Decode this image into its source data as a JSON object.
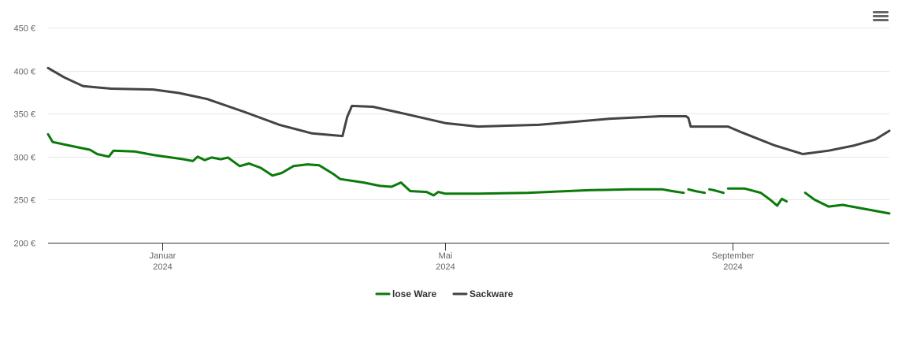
{
  "menu": {
    "icon": "hamburger-menu-icon"
  },
  "chart_data": {
    "type": "line",
    "title": "",
    "xlabel": "",
    "ylabel": "",
    "ylim": [
      200,
      450
    ],
    "y_ticks": [
      200,
      250,
      300,
      350,
      400,
      450
    ],
    "y_unit_suffix": " €",
    "xlim": [
      "2023-11-13",
      "2024-11-07"
    ],
    "x_ticks": [
      {
        "date": "2024-01-01",
        "month": "Januar",
        "year": "2024"
      },
      {
        "date": "2024-05-01",
        "month": "Mai",
        "year": "2024"
      },
      {
        "date": "2024-09-01",
        "month": "September",
        "year": "2024"
      }
    ],
    "grid": true,
    "legend": "bottom-center",
    "colors": {
      "lose_ware": "#0a7a0a",
      "sackware": "#434348",
      "grid": "#e6e6e6",
      "axis": "#333333"
    },
    "series": [
      {
        "name": "lose Ware",
        "color": "#0a7a0a",
        "segments": [
          [
            [
              "2023-11-13",
              326
            ],
            [
              "2023-11-15",
              317
            ],
            [
              "2023-11-22",
              313
            ],
            [
              "2023-12-01",
              308
            ],
            [
              "2023-12-04",
              303
            ],
            [
              "2023-12-09",
              300
            ],
            [
              "2023-12-11",
              307
            ],
            [
              "2023-12-20",
              306
            ],
            [
              "2023-12-28",
              302
            ],
            [
              "2024-01-10",
              297
            ],
            [
              "2024-01-14",
              295
            ],
            [
              "2024-01-16",
              300
            ],
            [
              "2024-01-19",
              296
            ],
            [
              "2024-01-22",
              299
            ],
            [
              "2024-01-26",
              297
            ],
            [
              "2024-01-29",
              299
            ],
            [
              "2024-02-03",
              289
            ],
            [
              "2024-02-07",
              292
            ],
            [
              "2024-02-12",
              287
            ],
            [
              "2024-02-17",
              278
            ],
            [
              "2024-02-21",
              281
            ],
            [
              "2024-02-26",
              289
            ],
            [
              "2024-03-03",
              291
            ],
            [
              "2024-03-08",
              290
            ],
            [
              "2024-03-14",
              280
            ],
            [
              "2024-03-17",
              274
            ],
            [
              "2024-03-27",
              270
            ],
            [
              "2024-04-03",
              266
            ],
            [
              "2024-04-08",
              265
            ],
            [
              "2024-04-12",
              270
            ],
            [
              "2024-04-16",
              260
            ],
            [
              "2024-04-23",
              259
            ],
            [
              "2024-04-26",
              255
            ],
            [
              "2024-04-28",
              259
            ],
            [
              "2024-05-01",
              257
            ],
            [
              "2024-05-15",
              257
            ],
            [
              "2024-06-05",
              258
            ],
            [
              "2024-07-01",
              261
            ],
            [
              "2024-07-19",
              262
            ],
            [
              "2024-08-02",
              262
            ],
            [
              "2024-08-06",
              260
            ],
            [
              "2024-08-11",
              258
            ]
          ],
          [
            [
              "2024-08-13",
              262
            ],
            [
              "2024-08-16",
              260
            ],
            [
              "2024-08-20",
              258
            ]
          ],
          [
            [
              "2024-08-22",
              262
            ],
            [
              "2024-08-24",
              261
            ],
            [
              "2024-08-28",
              258
            ]
          ],
          [
            [
              "2024-08-30",
              263
            ],
            [
              "2024-09-06",
              263
            ],
            [
              "2024-09-13",
              258
            ],
            [
              "2024-09-17",
              250
            ],
            [
              "2024-09-20",
              243
            ],
            [
              "2024-09-22",
              251
            ],
            [
              "2024-09-24",
              248
            ]
          ],
          [
            [
              "2024-10-02",
              258
            ],
            [
              "2024-10-06",
              250
            ],
            [
              "2024-10-12",
              242
            ],
            [
              "2024-10-18",
              244
            ],
            [
              "2024-11-07",
              234
            ]
          ]
        ]
      },
      {
        "name": "Sackware",
        "color": "#434348",
        "segments": [
          [
            [
              "2023-11-13",
              403
            ],
            [
              "2023-11-20",
              392
            ],
            [
              "2023-11-28",
              382
            ],
            [
              "2023-12-10",
              379
            ],
            [
              "2023-12-28",
              378
            ],
            [
              "2024-01-08",
              374
            ],
            [
              "2024-01-20",
              367
            ],
            [
              "2024-02-05",
              352
            ],
            [
              "2024-02-20",
              337
            ],
            [
              "2024-03-05",
              327
            ],
            [
              "2024-03-18",
              324
            ],
            [
              "2024-03-20",
              346
            ],
            [
              "2024-03-22",
              359
            ],
            [
              "2024-03-31",
              358
            ],
            [
              "2024-04-15",
              349
            ],
            [
              "2024-05-01",
              339
            ],
            [
              "2024-05-15",
              335
            ],
            [
              "2024-06-10",
              337
            ],
            [
              "2024-07-10",
              344
            ],
            [
              "2024-08-01",
              347
            ],
            [
              "2024-08-12",
              347
            ],
            [
              "2024-08-13",
              345
            ],
            [
              "2024-08-14",
              335
            ],
            [
              "2024-08-30",
              335
            ],
            [
              "2024-09-05",
              328
            ],
            [
              "2024-09-19",
              313
            ],
            [
              "2024-10-01",
              303
            ],
            [
              "2024-10-12",
              307
            ],
            [
              "2024-10-23",
              313
            ],
            [
              "2024-11-01",
              320
            ],
            [
              "2024-11-07",
              330
            ]
          ]
        ]
      }
    ]
  }
}
